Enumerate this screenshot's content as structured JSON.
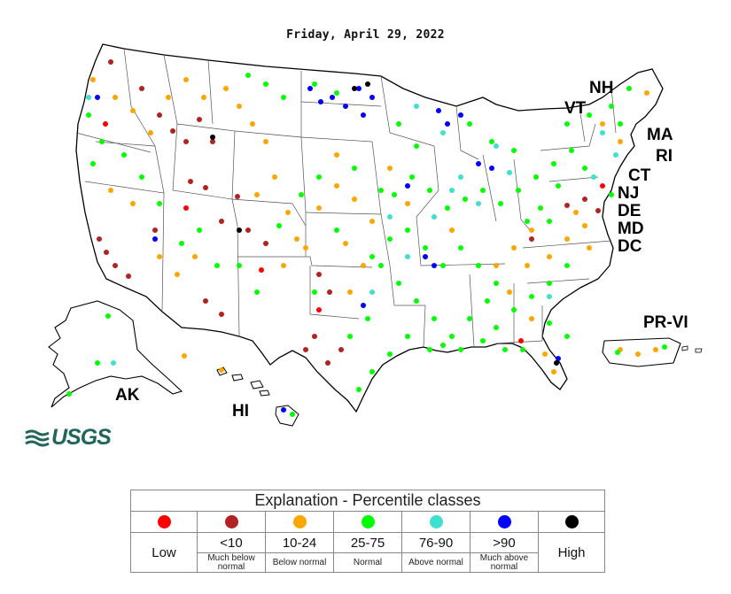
{
  "map": {
    "date": "Friday, April 29, 2022",
    "state_labels": [
      "NH",
      "VT",
      "MA",
      "RI",
      "CT",
      "NJ",
      "DE",
      "MD",
      "DC",
      "PR-VI",
      "AK",
      "HI"
    ],
    "logo_text": "USGS"
  },
  "legend": {
    "title": "Explanation - Percentile classes",
    "classes": [
      {
        "key": "low",
        "color": "#ff0000",
        "range": "",
        "short": "Low",
        "desc": ""
      },
      {
        "key": "much-below",
        "color": "#b22222",
        "range": "<10",
        "short": "",
        "desc": "Much below normal"
      },
      {
        "key": "below",
        "color": "#ffa500",
        "range": "10-24",
        "short": "",
        "desc": "Below normal"
      },
      {
        "key": "normal",
        "color": "#00ff00",
        "range": "25-75",
        "short": "",
        "desc": "Normal"
      },
      {
        "key": "above",
        "color": "#40e0d0",
        "range": "76-90",
        "short": "",
        "desc": "Above normal"
      },
      {
        "key": "much-above",
        "color": "#0000ff",
        "range": ">90",
        "short": "",
        "desc": "Much above normal"
      },
      {
        "key": "high",
        "color": "#000000",
        "range": "",
        "short": "High",
        "desc": ""
      }
    ]
  }
}
